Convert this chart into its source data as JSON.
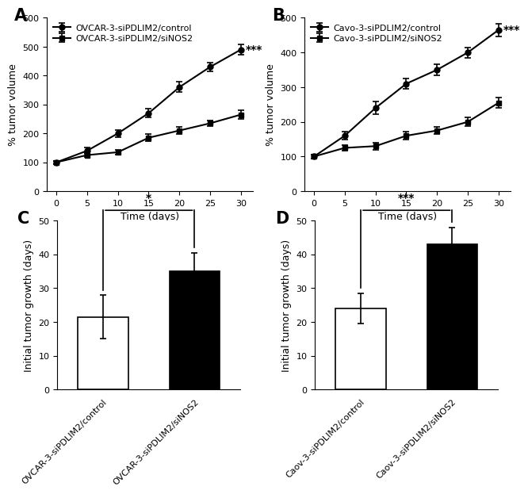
{
  "A": {
    "label": "A",
    "x": [
      0,
      5,
      10,
      15,
      20,
      25,
      30
    ],
    "control_y": [
      100,
      140,
      200,
      270,
      360,
      430,
      490
    ],
    "control_err": [
      5,
      10,
      12,
      15,
      18,
      15,
      18
    ],
    "siNOS2_y": [
      100,
      125,
      135,
      185,
      210,
      235,
      265
    ],
    "siNOS2_err": [
      5,
      8,
      8,
      12,
      12,
      10,
      15
    ],
    "ylabel": "% tumor volume",
    "xlabel": "Time (days)",
    "ylim": [
      0,
      600
    ],
    "yticks": [
      0,
      100,
      200,
      300,
      400,
      500,
      600
    ],
    "legend1": "OVCAR-3-siPDLIM2/control",
    "legend2": "OVCAR-3-siPDLIM2/siNOS2",
    "sig": "***"
  },
  "B": {
    "label": "B",
    "x": [
      0,
      5,
      10,
      15,
      20,
      25,
      30
    ],
    "control_y": [
      100,
      160,
      240,
      310,
      350,
      400,
      465
    ],
    "control_err": [
      5,
      12,
      18,
      15,
      15,
      15,
      18
    ],
    "siNOS2_y": [
      100,
      125,
      130,
      160,
      175,
      200,
      255
    ],
    "siNOS2_err": [
      5,
      8,
      10,
      12,
      10,
      12,
      15
    ],
    "ylabel": "% tumor volume",
    "xlabel": "Time (days)",
    "ylim": [
      0,
      500
    ],
    "yticks": [
      0,
      100,
      200,
      300,
      400,
      500
    ],
    "legend1": "Cavo-3-siPDLIM2/control",
    "legend2": "Cavo-3-siPDLIM2/siNOS2",
    "sig": "***"
  },
  "C": {
    "label": "C",
    "categories": [
      "OVCAR-3-siPDLIM2/control",
      "OVCAR-3-siPDLIM2/siNOS2"
    ],
    "values": [
      21.5,
      35.0
    ],
    "errors": [
      6.5,
      5.5
    ],
    "colors": [
      "white",
      "black"
    ],
    "ylabel": "Initial tumor growth (days)",
    "ylim": [
      0,
      50
    ],
    "yticks": [
      0,
      10,
      20,
      30,
      40,
      50
    ],
    "sig": "*"
  },
  "D": {
    "label": "D",
    "categories": [
      "Caov-3-siPDLIM2/control",
      "Caov-3-siPDLIM2/siNOS2"
    ],
    "values": [
      24.0,
      43.0
    ],
    "errors": [
      4.5,
      5.0
    ],
    "colors": [
      "white",
      "black"
    ],
    "ylabel": "Initial tumor growth (days)",
    "ylim": [
      0,
      50
    ],
    "yticks": [
      0,
      10,
      20,
      30,
      40,
      50
    ],
    "sig": "***"
  },
  "panel_label_fontsize": 15,
  "axis_label_fontsize": 9,
  "tick_fontsize": 8,
  "legend_fontsize": 8,
  "sig_fontsize": 10,
  "linewidth": 1.5,
  "marker_size": 5,
  "bar_width": 0.55,
  "elinewidth": 1.2,
  "capsize": 3
}
